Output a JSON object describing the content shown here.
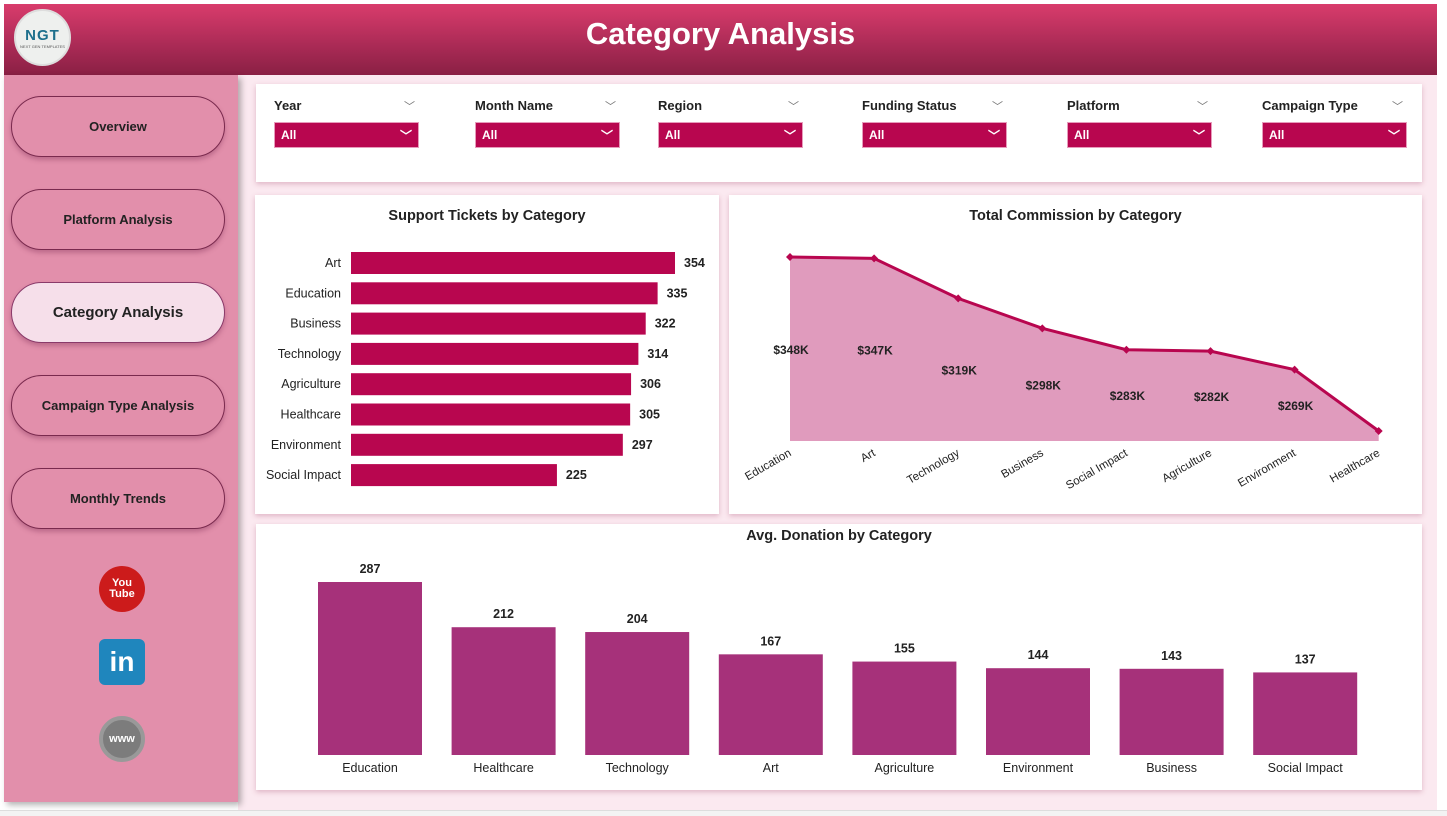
{
  "header": {
    "title": "Category Analysis",
    "logo_text": "NGT",
    "logo_subtext": "NEXT GEN TEMPLATES"
  },
  "sidebar": {
    "items": [
      {
        "label": "Overview",
        "active": false
      },
      {
        "label": "Platform Analysis",
        "active": false
      },
      {
        "label": "Category Analysis",
        "active": true
      },
      {
        "label": "Campaign Type Analysis",
        "active": false
      },
      {
        "label": "Monthly Trends",
        "active": false
      }
    ],
    "social": [
      {
        "icon": "youtube-icon",
        "text": "You Tube"
      },
      {
        "icon": "linkedin-icon",
        "text": "in"
      },
      {
        "icon": "globe-www-icon",
        "text": "www"
      }
    ]
  },
  "filters": [
    {
      "label": "Year",
      "value": "All"
    },
    {
      "label": "Month Name",
      "value": "All"
    },
    {
      "label": "Region",
      "value": "All"
    },
    {
      "label": "Funding Status",
      "value": "All"
    },
    {
      "label": "Platform",
      "value": "All"
    },
    {
      "label": "Campaign Type",
      "value": "All"
    }
  ],
  "colors": {
    "accent": "#b8064f",
    "area_fill": "#e09bbd",
    "area_line": "#b8064f",
    "column": "#a6317a",
    "sidebar": "#e28fab"
  },
  "chart_data": [
    {
      "type": "bar",
      "orientation": "horizontal",
      "title": "Support Tickets by Category",
      "categories": [
        "Art",
        "Education",
        "Business",
        "Technology",
        "Agriculture",
        "Healthcare",
        "Environment",
        "Social Impact"
      ],
      "values": [
        354,
        335,
        322,
        314,
        306,
        305,
        297,
        225
      ]
    },
    {
      "type": "area",
      "title": "Total Commission by Category",
      "categories": [
        "Education",
        "Art",
        "Technology",
        "Business",
        "Social Impact",
        "Agriculture",
        "Environment",
        "Healthcare"
      ],
      "values": [
        348,
        347,
        319,
        298,
        283,
        282,
        269,
        226
      ],
      "labels": [
        "$348K",
        "$347K",
        "$319K",
        "$298K",
        "$283K",
        "$282K",
        "$269K",
        null
      ],
      "unit": "K USD",
      "ylim": [
        219,
        348
      ]
    },
    {
      "type": "bar",
      "orientation": "vertical",
      "title": "Avg. Donation by Category",
      "categories": [
        "Education",
        "Healthcare",
        "Technology",
        "Art",
        "Agriculture",
        "Environment",
        "Business",
        "Social Impact"
      ],
      "values": [
        287,
        212,
        204,
        167,
        155,
        144,
        143,
        137
      ],
      "ylim": [
        0,
        287
      ]
    }
  ]
}
